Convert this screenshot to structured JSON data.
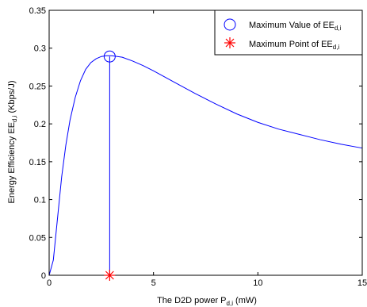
{
  "chart_data": {
    "type": "line",
    "xlabel": "The D2D power P",
    "xlabel_sub": "d,i",
    "xlabel_unit": " (mW)",
    "ylabel": "Energy Efficiency EE",
    "ylabel_sub": "d,i",
    "ylabel_unit": " (Kbps/J)",
    "xlim": [
      0,
      15
    ],
    "ylim": [
      0,
      0.35
    ],
    "x_ticks": [
      0,
      5,
      10,
      15
    ],
    "x_tick_labels": [
      "0",
      "5",
      "10",
      "15"
    ],
    "y_ticks": [
      0,
      0.05,
      0.1,
      0.15,
      0.2,
      0.25,
      0.3,
      0.35
    ],
    "y_tick_labels": [
      "0",
      "0.05",
      "0.1",
      "0.15",
      "0.2",
      "0.25",
      "0.3",
      "0.35"
    ],
    "grid": false,
    "legend_position": "top-right",
    "series": [
      {
        "kind": "curve",
        "color": "#0000ff",
        "x": [
          0,
          0.2,
          0.4,
          0.6,
          0.8,
          1.0,
          1.25,
          1.5,
          1.75,
          2.0,
          2.25,
          2.5,
          2.75,
          3.0,
          3.5,
          4.0,
          4.5,
          5.0,
          6.0,
          7.0,
          8.0,
          9.0,
          10.0,
          11.0,
          12.0,
          13.0,
          14.0,
          15.0
        ],
        "y": [
          0,
          0.02,
          0.075,
          0.13,
          0.172,
          0.205,
          0.235,
          0.257,
          0.272,
          0.281,
          0.286,
          0.289,
          0.29,
          0.29,
          0.288,
          0.283,
          0.277,
          0.27,
          0.255,
          0.24,
          0.226,
          0.213,
          0.202,
          0.193,
          0.186,
          0.179,
          0.173,
          0.168
        ]
      }
    ],
    "markers": {
      "max_value": {
        "label": "Maximum Value of EE",
        "label_sub": "d,i",
        "x": 2.9,
        "y": 0.289,
        "symbol": "circle",
        "color": "#0000ff"
      },
      "max_point": {
        "label": "Maximum Point of EE",
        "label_sub": "d,i",
        "x": 2.9,
        "y": 0,
        "symbol": "asterisk",
        "color": "#ff0000"
      }
    },
    "drop_line": {
      "x": 2.9,
      "from": 0,
      "to": 0.289,
      "color": "#0000ff"
    }
  }
}
